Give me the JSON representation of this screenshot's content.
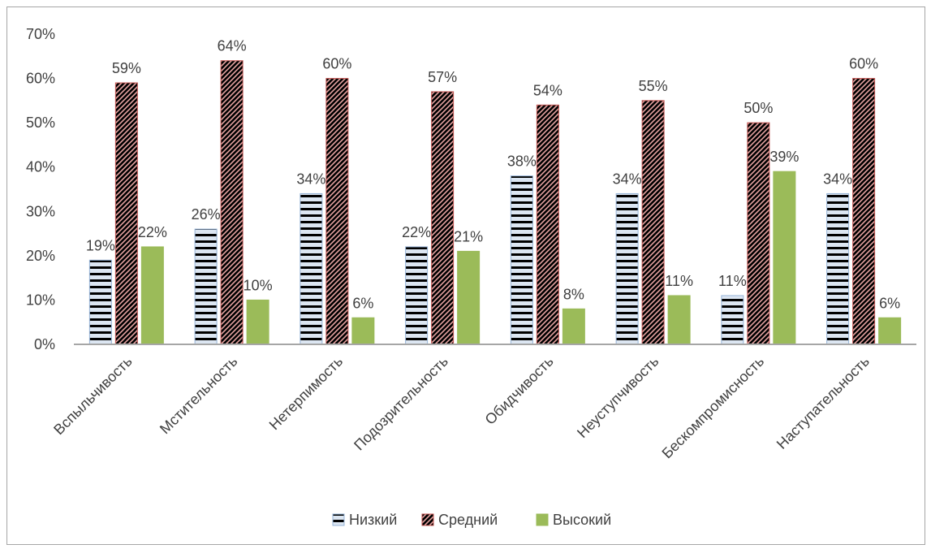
{
  "chart_data": {
    "type": "bar",
    "categories": [
      "Вспыльчивость",
      "Мстительность",
      "Нетерпимость",
      "Подозрительность",
      "Обидчивость",
      "Неуступчивость",
      "Бескомпромисность",
      "Наступательность"
    ],
    "series": [
      {
        "name": "Низкий",
        "values": [
          19,
          26,
          34,
          22,
          38,
          34,
          11,
          34
        ],
        "color": "#4f81bd",
        "pattern": "horizontal-stripes"
      },
      {
        "name": "Средний",
        "values": [
          59,
          64,
          60,
          57,
          54,
          55,
          50,
          60
        ],
        "color": "#c0504d",
        "pattern": "zigzag"
      },
      {
        "name": "Высокий",
        "values": [
          22,
          10,
          6,
          21,
          8,
          11,
          39,
          6
        ],
        "color": "#9bbb59",
        "pattern": "solid"
      }
    ],
    "value_format": "percent",
    "ylim": [
      0,
      70
    ],
    "yticks": [
      "0%",
      "10%",
      "20%",
      "30%",
      "40%",
      "50%",
      "60%",
      "70%"
    ],
    "grid": false,
    "legend_position": "bottom",
    "title": "",
    "xlabel": "",
    "ylabel": ""
  }
}
